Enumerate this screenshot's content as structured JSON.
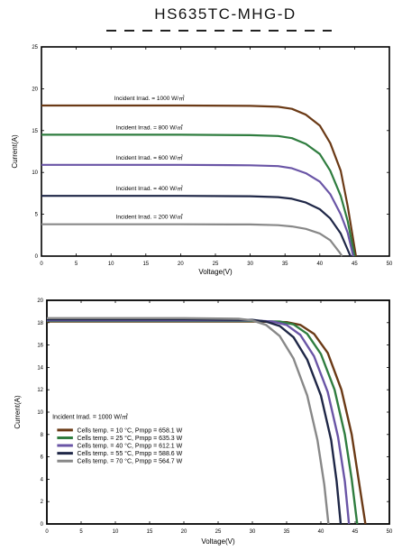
{
  "page": {
    "title": "HS635TC-MHG-D"
  },
  "chart_data": [
    {
      "type": "line",
      "xlabel": "Voltage(V)",
      "ylabel": "Current(A)",
      "xlim": [
        0,
        50
      ],
      "ylim": [
        0,
        25
      ],
      "xticks": [
        0,
        5,
        10,
        15,
        20,
        25,
        30,
        35,
        40,
        45,
        50
      ],
      "yticks": [
        0,
        5,
        10,
        15,
        20,
        25
      ],
      "grid": false,
      "series": [
        {
          "name": "Incident Irrad. = 1000 W/㎡",
          "color": "#6b3a16",
          "points": [
            [
              0,
              18.0
            ],
            [
              10,
              18.0
            ],
            [
              20,
              18.0
            ],
            [
              30,
              17.95
            ],
            [
              34,
              17.85
            ],
            [
              36,
              17.6
            ],
            [
              38,
              16.9
            ],
            [
              40,
              15.6
            ],
            [
              41.5,
              13.5
            ],
            [
              43,
              10.2
            ],
            [
              44,
              6.0
            ],
            [
              45.2,
              0
            ]
          ]
        },
        {
          "name": "Incident Irrad. = 800 W/㎡",
          "color": "#2f7d3f",
          "points": [
            [
              0,
              14.5
            ],
            [
              10,
              14.5
            ],
            [
              20,
              14.5
            ],
            [
              30,
              14.45
            ],
            [
              34,
              14.35
            ],
            [
              36,
              14.1
            ],
            [
              38,
              13.4
            ],
            [
              40,
              12.2
            ],
            [
              41.5,
              10.2
            ],
            [
              43,
              7.2
            ],
            [
              44,
              4.2
            ],
            [
              45.0,
              0
            ]
          ]
        },
        {
          "name": "Incident Irrad. = 600 W/㎡",
          "color": "#6a55a6",
          "points": [
            [
              0,
              10.9
            ],
            [
              10,
              10.9
            ],
            [
              20,
              10.9
            ],
            [
              30,
              10.85
            ],
            [
              34,
              10.75
            ],
            [
              36,
              10.5
            ],
            [
              38,
              9.9
            ],
            [
              40,
              8.9
            ],
            [
              41.5,
              7.4
            ],
            [
              43,
              5.0
            ],
            [
              44,
              2.8
            ],
            [
              44.8,
              0
            ]
          ]
        },
        {
          "name": "Incident Irrad. = 400 W/㎡",
          "color": "#1f2747",
          "points": [
            [
              0,
              7.2
            ],
            [
              10,
              7.2
            ],
            [
              20,
              7.2
            ],
            [
              30,
              7.15
            ],
            [
              34,
              7.05
            ],
            [
              36,
              6.85
            ],
            [
              38,
              6.4
            ],
            [
              40,
              5.6
            ],
            [
              41.5,
              4.5
            ],
            [
              43,
              2.7
            ],
            [
              44.4,
              0
            ]
          ]
        },
        {
          "name": "Incident Irrad. = 200 W/㎡",
          "color": "#888888",
          "points": [
            [
              0,
              3.8
            ],
            [
              10,
              3.8
            ],
            [
              20,
              3.8
            ],
            [
              30,
              3.78
            ],
            [
              34,
              3.7
            ],
            [
              36,
              3.55
            ],
            [
              38,
              3.25
            ],
            [
              40,
              2.7
            ],
            [
              41.5,
              1.9
            ],
            [
              42.8,
              0.5
            ],
            [
              43.2,
              0
            ]
          ]
        }
      ]
    },
    {
      "type": "line",
      "xlabel": "Voltage(V)",
      "ylabel": "Current(A)",
      "xlim": [
        0,
        50
      ],
      "ylim": [
        0,
        20
      ],
      "xticks": [
        0,
        5,
        10,
        15,
        20,
        25,
        30,
        35,
        40,
        45,
        50
      ],
      "yticks": [
        0,
        2,
        4,
        6,
        8,
        10,
        12,
        14,
        16,
        18,
        20
      ],
      "grid": false,
      "legend_title": "Incident Irrad. = 1000 W/㎡",
      "legend_position": "bottom-left",
      "series": [
        {
          "name": "Cells temp. = 10 °C,  Pmpp = 658.1 W",
          "color": "#6b3a16",
          "points": [
            [
              0,
              18.1
            ],
            [
              10,
              18.1
            ],
            [
              20,
              18.1
            ],
            [
              30,
              18.1
            ],
            [
              35,
              18.05
            ],
            [
              37,
              17.8
            ],
            [
              39,
              17.0
            ],
            [
              41,
              15.3
            ],
            [
              43,
              12.0
            ],
            [
              44.5,
              8.0
            ],
            [
              45.5,
              4.0
            ],
            [
              46.5,
              0
            ]
          ]
        },
        {
          "name": "Cells temp. = 25 °C,  Pmpp = 635.3 W",
          "color": "#2f7d3f",
          "points": [
            [
              0,
              18.15
            ],
            [
              10,
              18.15
            ],
            [
              20,
              18.15
            ],
            [
              30,
              18.15
            ],
            [
              34,
              18.1
            ],
            [
              36,
              17.85
            ],
            [
              38,
              17.0
            ],
            [
              40,
              15.2
            ],
            [
              42,
              12.0
            ],
            [
              43.5,
              8.0
            ],
            [
              44.5,
              4.0
            ],
            [
              45.3,
              0
            ]
          ]
        },
        {
          "name": "Cells temp. = 40 °C,  Pmpp = 612.1 W",
          "color": "#6a55a6",
          "points": [
            [
              0,
              18.2
            ],
            [
              10,
              18.2
            ],
            [
              20,
              18.2
            ],
            [
              30,
              18.2
            ],
            [
              33,
              18.1
            ],
            [
              35,
              17.8
            ],
            [
              37,
              16.9
            ],
            [
              39,
              15.0
            ],
            [
              41,
              11.8
            ],
            [
              42.5,
              7.8
            ],
            [
              43.5,
              3.8
            ],
            [
              44.1,
              0
            ]
          ]
        },
        {
          "name": "Cells temp. = 55 °C,  Pmpp = 588.6 W",
          "color": "#1f2747",
          "points": [
            [
              0,
              18.3
            ],
            [
              10,
              18.3
            ],
            [
              20,
              18.3
            ],
            [
              30,
              18.25
            ],
            [
              32,
              18.1
            ],
            [
              34,
              17.7
            ],
            [
              36,
              16.7
            ],
            [
              38,
              14.7
            ],
            [
              40,
              11.5
            ],
            [
              41.5,
              7.5
            ],
            [
              42.3,
              3.8
            ],
            [
              42.9,
              0
            ]
          ]
        },
        {
          "name": "Cells temp. = 70 °C,  Pmpp = 564.7 W",
          "color": "#888888",
          "points": [
            [
              0,
              18.4
            ],
            [
              10,
              18.4
            ],
            [
              20,
              18.4
            ],
            [
              28,
              18.35
            ],
            [
              30,
              18.2
            ],
            [
              32,
              17.8
            ],
            [
              34,
              16.8
            ],
            [
              36,
              14.8
            ],
            [
              38,
              11.5
            ],
            [
              39.5,
              7.5
            ],
            [
              40.5,
              3.5
            ],
            [
              41.1,
              0
            ]
          ]
        }
      ]
    }
  ]
}
